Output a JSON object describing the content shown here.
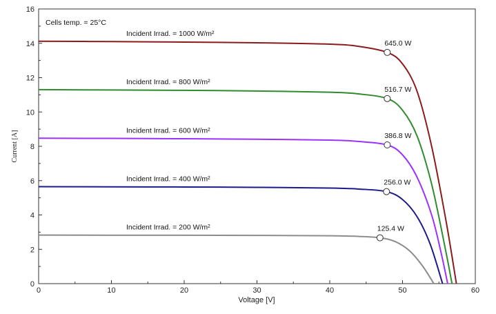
{
  "chart_data": {
    "type": "line",
    "title": "",
    "xlabel": "Voltage [V]",
    "ylabel": "Current [A]",
    "xlim": [
      0,
      60
    ],
    "ylim": [
      0,
      16
    ],
    "x_ticks": [
      "0",
      "10",
      "20",
      "30",
      "40",
      "50",
      "60"
    ],
    "y_ticks": [
      "0",
      "2",
      "4",
      "6",
      "8",
      "10",
      "12",
      "14",
      "16"
    ],
    "grid": false,
    "legend": "none",
    "annotation": "Cells temp. = 25°C",
    "series": [
      {
        "label": "Incident Irrad. = 1000 W/m²",
        "color": "#8b1a1a",
        "isc": 14.12,
        "voc": 57.4,
        "mpp_v": 47.9,
        "mpp_i": 13.47,
        "power_label": "645.0 W",
        "x": [
          0,
          10,
          20,
          30,
          40,
          44,
          47.9,
          50,
          52,
          54,
          56,
          57.4
        ],
        "y": [
          14.12,
          14.1,
          14.07,
          14.03,
          13.95,
          13.82,
          13.47,
          12.8,
          11.2,
          8.0,
          3.6,
          0
        ]
      },
      {
        "label": "Incident Irrad. = 800 W/m²",
        "color": "#2e8b2e",
        "isc": 11.3,
        "voc": 56.8,
        "mpp_v": 47.9,
        "mpp_i": 10.78,
        "power_label": "516.7 W",
        "x": [
          0,
          10,
          20,
          30,
          40,
          44,
          47.9,
          50,
          52,
          54,
          55.8,
          56.8
        ],
        "y": [
          11.3,
          11.28,
          11.26,
          11.22,
          11.15,
          11.05,
          10.78,
          10.1,
          8.6,
          5.8,
          2.2,
          0
        ]
      },
      {
        "label": "Incident Irrad. = 600 W/m²",
        "color": "#9b30ff",
        "isc": 8.47,
        "voc": 56.2,
        "mpp_v": 47.9,
        "mpp_i": 8.08,
        "power_label": "386.8 W",
        "x": [
          0,
          10,
          20,
          30,
          40,
          44,
          47.9,
          50,
          52,
          54,
          55.3,
          56.2
        ],
        "y": [
          8.47,
          8.46,
          8.44,
          8.41,
          8.36,
          8.28,
          8.08,
          7.5,
          6.2,
          4.0,
          1.8,
          0
        ]
      },
      {
        "label": "Incident Irrad. = 400 W/m²",
        "color": "#1a1a8b",
        "isc": 5.65,
        "voc": 55.5,
        "mpp_v": 47.8,
        "mpp_i": 5.36,
        "power_label": "256.0 W",
        "x": [
          0,
          10,
          20,
          30,
          40,
          44,
          47.8,
          50,
          52,
          53.8,
          55.5
        ],
        "y": [
          5.65,
          5.64,
          5.63,
          5.61,
          5.57,
          5.51,
          5.36,
          4.9,
          3.9,
          2.3,
          0
        ]
      },
      {
        "label": "Incident Irrad. = 200 W/m²",
        "color": "#8c8c8c",
        "isc": 2.83,
        "voc": 54.3,
        "mpp_v": 46.9,
        "mpp_i": 2.67,
        "power_label": "125.4 W",
        "x": [
          0,
          10,
          20,
          30,
          40,
          44,
          46.9,
          49,
          51,
          52.8,
          54.3
        ],
        "y": [
          2.83,
          2.82,
          2.82,
          2.81,
          2.79,
          2.75,
          2.67,
          2.45,
          1.9,
          1.0,
          0
        ]
      }
    ]
  }
}
